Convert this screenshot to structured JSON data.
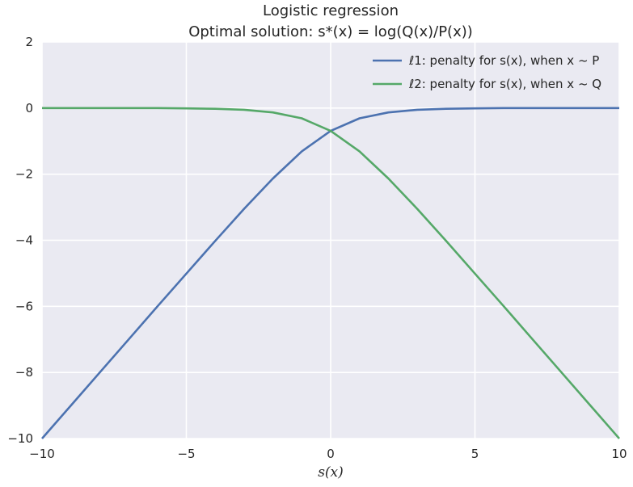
{
  "chart_data": {
    "type": "line",
    "title": "Logistic regression",
    "subtitle": "Optimal solution: s*(x) = log(Q(x)/P(x))",
    "xlabel": "s(x)",
    "ylabel": "",
    "xlim": [
      -10,
      10
    ],
    "ylim": [
      -10,
      2
    ],
    "x_ticks": [
      "−10",
      "−5",
      "0",
      "5",
      "10"
    ],
    "y_ticks": [
      "2",
      "0",
      "−2",
      "−4",
      "−6",
      "−8",
      "−10"
    ],
    "grid": true,
    "legend_position": "top-right",
    "series": [
      {
        "name": "ℓ1: penalty for s(x), when x ~ P",
        "color": "#4c72b0",
        "x": [
          -10,
          -9,
          -8,
          -7,
          -6,
          -5,
          -4,
          -3,
          -2,
          -1,
          0,
          1,
          2,
          3,
          4,
          5,
          6,
          7,
          8,
          9,
          10
        ],
        "y": [
          -10.0,
          -9.0,
          -8.0,
          -7.0,
          -6.0,
          -5.01,
          -4.02,
          -3.05,
          -2.13,
          -1.31,
          -0.69,
          -0.31,
          -0.13,
          -0.05,
          -0.02,
          -0.01,
          0.0,
          0.0,
          0.0,
          0.0,
          0.0
        ]
      },
      {
        "name": "ℓ2: penalty for s(x), when x ~ Q",
        "color": "#55a868",
        "x": [
          -10,
          -9,
          -8,
          -7,
          -6,
          -5,
          -4,
          -3,
          -2,
          -1,
          0,
          1,
          2,
          3,
          4,
          5,
          6,
          7,
          8,
          9,
          10
        ],
        "y": [
          0.0,
          0.0,
          0.0,
          0.0,
          0.0,
          -0.01,
          -0.02,
          -0.05,
          -0.13,
          -0.31,
          -0.69,
          -1.31,
          -2.13,
          -3.05,
          -4.02,
          -5.01,
          -6.0,
          -7.0,
          -8.0,
          -9.0,
          -10.0
        ]
      }
    ]
  }
}
